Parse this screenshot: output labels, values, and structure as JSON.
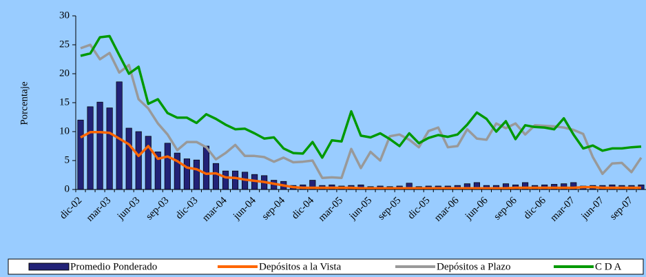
{
  "chart_data": {
    "type": "bar-line",
    "y_label": "Porcentaje",
    "categories": [
      "dic-02",
      null,
      null,
      "mar-03",
      null,
      null,
      "jun-03",
      null,
      null,
      "sep-03",
      null,
      null,
      "dic-03",
      null,
      null,
      "mar-04",
      null,
      null,
      "jun-04",
      null,
      null,
      "sep-04",
      null,
      null,
      "dic-04",
      null,
      null,
      "mar-05",
      null,
      null,
      "jun-05",
      null,
      null,
      "sep-05",
      null,
      null,
      "dic-05",
      null,
      null,
      "mar-06",
      null,
      null,
      "jun-06",
      null,
      null,
      "sep-06",
      null,
      null,
      "dic-06",
      null,
      null,
      "mar-07",
      null,
      null,
      "jun-07",
      null,
      null,
      "sep-07",
      null
    ],
    "series": [
      {
        "name": "Promedio Ponderado",
        "kind": "bar",
        "color": "#222277",
        "values": [
          12,
          14.3,
          15.1,
          14.1,
          18.6,
          10.6,
          10,
          9.2,
          6.5,
          8,
          6.3,
          5.3,
          5.1,
          7.5,
          4.5,
          3.2,
          3.2,
          3,
          2.6,
          2.4,
          1.6,
          1.4,
          0.7,
          0.8,
          1.6,
          0.7,
          0.8,
          0.6,
          0.7,
          0.8,
          0.5,
          0.6,
          0.5,
          0.6,
          1.1,
          0.5,
          0.6,
          0.6,
          0.6,
          0.7,
          1,
          1.2,
          0.7,
          0.7,
          1,
          0.8,
          1.2,
          0.7,
          0.8,
          0.9,
          1,
          1.2,
          0.6,
          0.7,
          0.7,
          0.8,
          0.7,
          0.7,
          0.8
        ]
      },
      {
        "name": "Depósitos a la Vista",
        "kind": "line",
        "color": "#ff6600",
        "values": [
          9,
          9.9,
          9.9,
          9.8,
          8.8,
          7.8,
          5.8,
          7.5,
          5.3,
          5.7,
          4.9,
          3.8,
          3.5,
          2.7,
          2.8,
          2.1,
          2,
          1.7,
          1.5,
          1.3,
          1,
          0.7,
          0.4,
          0.3,
          0.3,
          0.3,
          0.3,
          0.3,
          0.3,
          0.2,
          0.2,
          0.2,
          0.2,
          0.2,
          0.2,
          0.2,
          0.2,
          0.2,
          0.2,
          0.2,
          0.2,
          0.2,
          0.2,
          0.2,
          0.2,
          0.3,
          0.3,
          0.3,
          0.3,
          0.3,
          0.3,
          0.3,
          0.4,
          0.4,
          0.3,
          0.3,
          0.3,
          0.3,
          0.3
        ]
      },
      {
        "name": "Depósitos a Plazo",
        "kind": "line",
        "color": "#999999",
        "values": [
          24.4,
          25,
          22.5,
          23.6,
          20.2,
          21.5,
          15.6,
          14,
          11.4,
          9.5,
          6.8,
          8.2,
          8.2,
          7.3,
          5.2,
          6.3,
          7.7,
          5.8,
          5.8,
          5.6,
          4.8,
          5.5,
          4.7,
          4.8,
          5,
          2,
          2.1,
          2,
          7,
          3.7,
          6.5,
          5,
          9.2,
          9.5,
          8.6,
          7.3,
          10.1,
          10.7,
          7.3,
          7.5,
          10.4,
          8.8,
          8.6,
          11.4,
          10.6,
          11.4,
          9.5,
          11.1,
          11,
          10.9,
          10.7,
          10.3,
          9.6,
          5.6,
          2.7,
          4.5,
          4.6,
          3,
          5.5
        ]
      },
      {
        "name": "C D A",
        "kind": "line",
        "color": "#009900",
        "values": [
          23.1,
          23.5,
          26.3,
          26.5,
          23.2,
          20,
          21.2,
          14.8,
          15.6,
          13.2,
          12.4,
          12.4,
          11.5,
          13,
          12.2,
          11.2,
          10.4,
          10.5,
          9.7,
          8.8,
          9,
          7.1,
          6.3,
          6.2,
          8.2,
          5.5,
          8.5,
          8.3,
          13.5,
          9.3,
          9,
          9.7,
          8.7,
          7.5,
          9.7,
          8,
          8.9,
          9.4,
          9.1,
          9.5,
          11.2,
          13.3,
          12.2,
          10,
          11.8,
          8.7,
          11.1,
          10.8,
          10.7,
          10.4,
          12.3,
          9.5,
          7.1,
          7.6,
          6.7,
          7.1,
          7.1,
          7.3,
          7.4
        ]
      }
    ],
    "ylim": [
      0,
      30
    ],
    "yticks": [
      0,
      5,
      10,
      15,
      20,
      25,
      30
    ],
    "legend": "bottom"
  }
}
